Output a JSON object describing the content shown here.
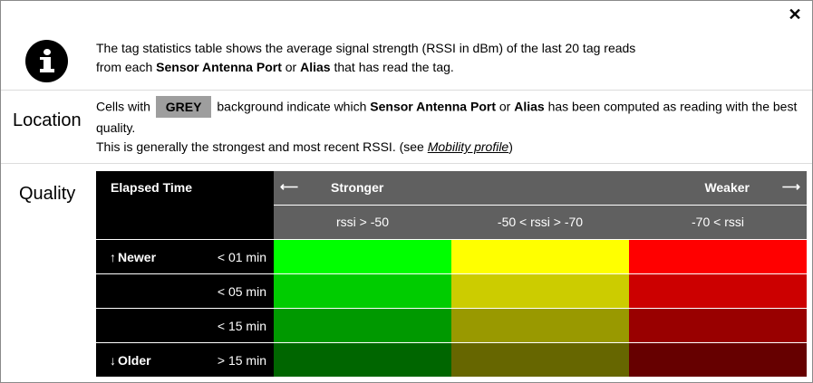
{
  "close_label": "✕",
  "intro": {
    "line1": "The tag statistics table shows the average signal strength (RSSI in dBm) of the last 20 tag reads",
    "line2_pre": "from each ",
    "line2_b1": "Sensor Antenna Port",
    "line2_mid": " or ",
    "line2_b2": "Alias",
    "line2_post": " that has read the tag."
  },
  "location": {
    "label": "Location",
    "p1_pre": "Cells with ",
    "chip": "GREY",
    "p1_mid": " background indicate which ",
    "p1_b1": "Sensor Antenna Port",
    "p1_or": " or ",
    "p1_b2": "Alias",
    "p1_post": " has been computed as reading with the best quality.",
    "p2_pre": "This is generally the strongest and most recent RSSI. (see ",
    "p2_link": "Mobility profile",
    "p2_post": ")"
  },
  "quality": {
    "label": "Quality",
    "elapsed_header": "Elapsed Time",
    "stronger": "Stronger",
    "weaker": "Weaker",
    "arrow_left": "⟵",
    "arrow_right": "⟶",
    "columns": [
      "rssi > -50",
      "-50 < rssi > -70",
      "-70 < rssi"
    ],
    "rows": [
      {
        "tag": "Newer",
        "arrow": "↑",
        "time": "< 01 min",
        "colors": [
          "#00ff00",
          "#ffff00",
          "#ff0000"
        ]
      },
      {
        "tag": "",
        "arrow": "",
        "time": "< 05 min",
        "colors": [
          "#00cc00",
          "#cccc00",
          "#cc0000"
        ]
      },
      {
        "tag": "",
        "arrow": "",
        "time": "< 15 min",
        "colors": [
          "#009900",
          "#999900",
          "#990000"
        ]
      },
      {
        "tag": "Older",
        "arrow": "↓",
        "time": "> 15 min",
        "colors": [
          "#006600",
          "#666600",
          "#660000"
        ]
      }
    ]
  }
}
